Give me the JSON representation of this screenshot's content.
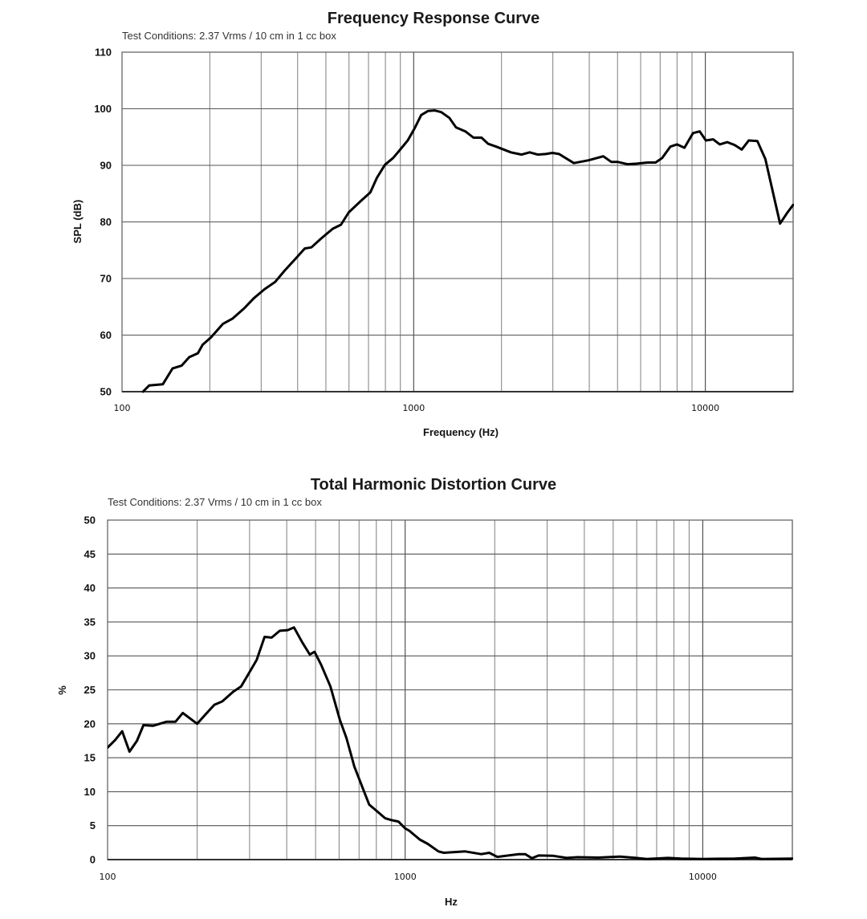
{
  "chart_data": [
    {
      "type": "line",
      "title": "Frequency Response Curve",
      "subtitle": "Test Conditions: 2.37 Vrms / 10 cm in 1 cc box",
      "xlabel": "Frequency (Hz)",
      "ylabel": "SPL (dB)",
      "xscale": "log",
      "xlim": [
        100,
        20000
      ],
      "ylim": [
        50,
        110
      ],
      "grid": true,
      "xticks": [
        "100",
        "1000",
        "10000"
      ],
      "yticks": [
        "50",
        "60",
        "70",
        "80",
        "90",
        "100",
        "110"
      ],
      "series": [
        {
          "name": "SPL",
          "x": [
            118,
            124,
            138,
            149,
            160,
            170,
            182,
            189,
            202,
            222,
            239,
            263,
            283,
            308,
            335,
            361,
            397,
            423,
            446,
            480,
            528,
            563,
            599,
            659,
            710,
            748,
            797,
            850,
            896,
            954,
            1006,
            1061,
            1119,
            1179,
            1243,
            1325,
            1397,
            1504,
            1603,
            1708,
            1800,
            1918,
            2154,
            2344,
            2498,
            2662,
            2836,
            2990,
            3151,
            3541,
            3978,
            4468,
            4762,
            5018,
            5405,
            5822,
            6335,
            6749,
            7115,
            7582,
            7993,
            8481,
            9075,
            9566,
            10042,
            10632,
            11208,
            11893,
            12591,
            13333,
            14087,
            15076,
            16062,
            18041,
            19019,
            20000
          ],
          "y": [
            50,
            51.1,
            51.3,
            54.1,
            54.6,
            56.1,
            56.8,
            58.3,
            59.6,
            62,
            62.9,
            64.8,
            66.5,
            68.1,
            69.4,
            71.4,
            73.7,
            75.3,
            75.5,
            77,
            78.8,
            79.5,
            81.7,
            83.7,
            85.2,
            87.8,
            90.1,
            91.3,
            92.7,
            94.4,
            96.5,
            98.9,
            99.6,
            99.7,
            99.4,
            98.4,
            96.7,
            96,
            94.9,
            94.9,
            93.8,
            93.3,
            92.3,
            91.9,
            92.3,
            91.9,
            92,
            92.2,
            92,
            90.4,
            90.9,
            91.6,
            90.6,
            90.6,
            90.2,
            90.3,
            90.5,
            90.5,
            91.3,
            93.3,
            93.7,
            93.1,
            95.7,
            96,
            94.4,
            94.6,
            93.7,
            94.1,
            93.6,
            92.8,
            94.4,
            94.3,
            91.1,
            79.7,
            81.5,
            83
          ]
        }
      ]
    },
    {
      "type": "line",
      "title": "Total Harmonic Distortion Curve",
      "subtitle": "Test Conditions: 2.37 Vrms / 10 cm in 1 cc box",
      "xlabel": "Hz",
      "ylabel": "%",
      "xscale": "log",
      "xlim": [
        100,
        20000
      ],
      "ylim": [
        0,
        50
      ],
      "grid": true,
      "xticks": [
        "100",
        "1000",
        "10000"
      ],
      "yticks": [
        "0",
        "5",
        "10",
        "15",
        "20",
        "25",
        "30",
        "35",
        "40",
        "45",
        "50"
      ],
      "series": [
        {
          "name": "THD",
          "x": [
            100,
            106,
            112,
            118.5,
            125.5,
            132,
            142,
            157.5,
            169,
            179,
            200,
            212.5,
            228.5,
            243,
            264,
            281,
            299,
            317,
            337,
            356,
            379,
            403,
            423,
            451,
            478,
            496,
            522,
            561,
            603,
            635,
            675,
            719,
            757,
            805,
            856,
            902,
            949,
            1000,
            1032,
            1120,
            1192,
            1294,
            1349,
            1591,
            1801,
            1917,
            2039,
            2406,
            2533,
            2667,
            2808,
            3147,
            3488,
            3789,
            4470,
            5272,
            5969,
            6481,
            7645,
            8478,
            10000,
            12813,
            14960,
            15752,
            20000
          ],
          "y": [
            16.5,
            17.6,
            18.9,
            15.9,
            17.5,
            19.8,
            19.7,
            20.3,
            20.3,
            21.6,
            20,
            21.3,
            22.8,
            23.3,
            24.7,
            25.5,
            27.5,
            29.4,
            32.8,
            32.7,
            33.7,
            33.8,
            34.2,
            32,
            30.2,
            30.6,
            28.7,
            25.5,
            20.6,
            17.9,
            13.7,
            10.6,
            8.1,
            7.1,
            6.1,
            5.8,
            5.6,
            4.6,
            4.25,
            2.95,
            2.3,
            1.2,
            1.0,
            1.2,
            0.8,
            1.0,
            0.4,
            0.8,
            0.8,
            0.2,
            0.6,
            0.55,
            0.25,
            0.35,
            0.3,
            0.45,
            0.25,
            0.1,
            0.25,
            0.15,
            0.1,
            0.15,
            0.3,
            0.1,
            0.15
          ]
        }
      ]
    }
  ]
}
